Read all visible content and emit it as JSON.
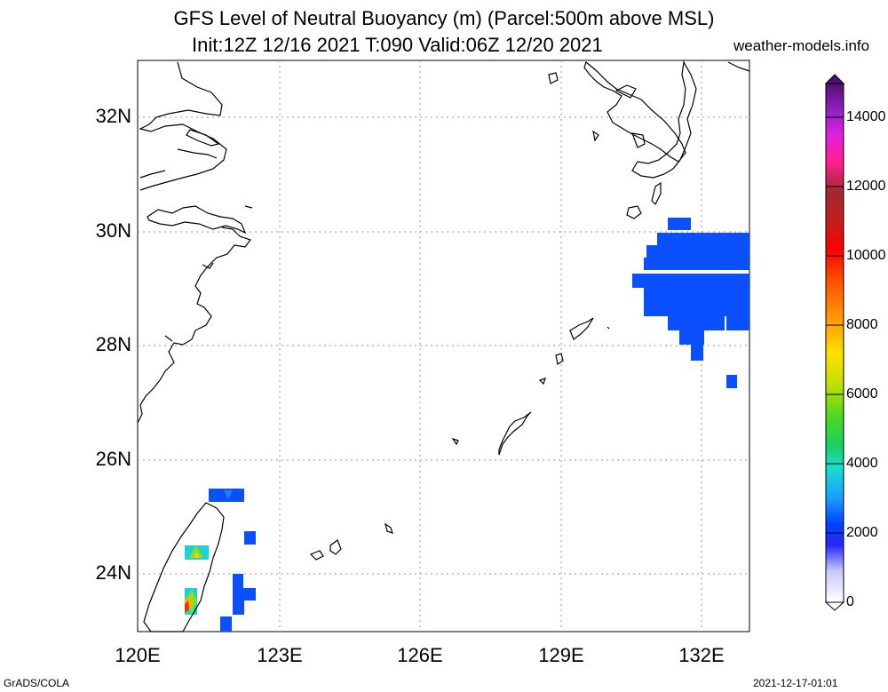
{
  "title": {
    "line1": "GFS Level of Neutral Buoyancy (m) (Parcel:500m above MSL)",
    "line2": "Init:12Z 12/16 2021 T:090 Valid:06Z 12/20 2021",
    "site": "weather-models.info"
  },
  "footer": {
    "left": "GrADS/COLA",
    "right": "2021-12-17-01:01"
  },
  "axes": {
    "lat_labels": [
      "32N",
      "30N",
      "28N",
      "26N",
      "24N"
    ],
    "lon_labels": [
      "120E",
      "123E",
      "126E",
      "129E",
      "132E"
    ]
  },
  "colorbar": {
    "labels": [
      "14000",
      "12000",
      "10000",
      "8000",
      "6000",
      "4000",
      "2000",
      "0"
    ],
    "min": 0,
    "max": 15000
  },
  "colors": {
    "field_blue": "#0a50ff",
    "coast": "#000000",
    "grid": "#9a9a9a"
  }
}
